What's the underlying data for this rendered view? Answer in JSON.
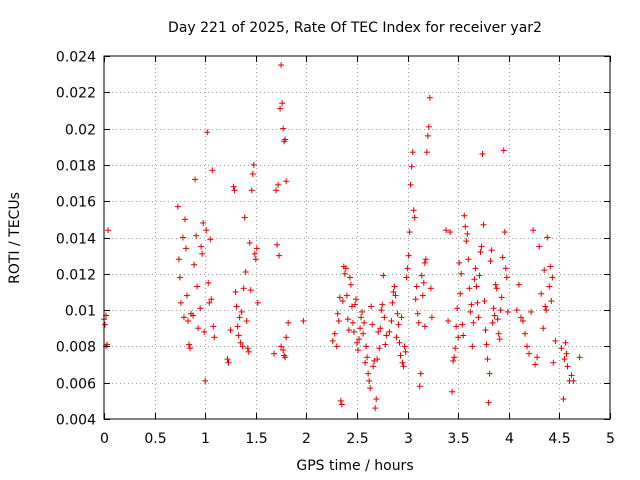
{
  "chart_data": {
    "type": "scatter",
    "title": "Day 221 of 2025, Rate Of TEC Index for receiver yar2",
    "xlabel": "GPS time / hours",
    "ylabel": "ROTI / TECUs",
    "xlim": [
      0,
      5
    ],
    "ylim": [
      0.004,
      0.024
    ],
    "xticks": [
      0,
      0.5,
      1,
      1.5,
      2,
      2.5,
      3,
      3.5,
      4,
      4.5,
      5
    ],
    "xtick_labels": [
      "0",
      "0.5",
      "1",
      "1.5",
      "2",
      "2.5",
      "3",
      "3.5",
      "4",
      "4.5",
      "5"
    ],
    "yticks": [
      0.004,
      0.006,
      0.008,
      0.01,
      0.012,
      0.014,
      0.016,
      0.018,
      0.02,
      0.022,
      0.024
    ],
    "ytick_labels": [
      "0.004",
      "0.006",
      "0.008",
      "0.01",
      "0.012",
      "0.014",
      "0.016",
      "0.018",
      "0.02",
      "0.022",
      "0.024"
    ],
    "grid": true,
    "marker": "+",
    "color": "#e00000",
    "series": [
      {
        "name": "ROTI",
        "points": [
          [
            0.0,
            0.0095
          ],
          [
            0.01,
            0.0092
          ],
          [
            0.02,
            0.008
          ],
          [
            0.03,
            0.0081
          ],
          [
            0.04,
            0.0144
          ],
          [
            0.02,
            0.0097
          ],
          [
            0.73,
            0.0157
          ],
          [
            0.74,
            0.0128
          ],
          [
            0.75,
            0.0118
          ],
          [
            0.76,
            0.0104
          ],
          [
            0.78,
            0.014
          ],
          [
            0.79,
            0.0096
          ],
          [
            0.8,
            0.015
          ],
          [
            0.81,
            0.0134
          ],
          [
            0.82,
            0.0108
          ],
          [
            0.83,
            0.0094
          ],
          [
            0.84,
            0.0081
          ],
          [
            0.85,
            0.0079
          ],
          [
            0.86,
            0.0098
          ],
          [
            0.88,
            0.0097
          ],
          [
            0.89,
            0.0125
          ],
          [
            0.9,
            0.0172
          ],
          [
            0.91,
            0.0141
          ],
          [
            0.92,
            0.0113
          ],
          [
            0.93,
            0.009
          ],
          [
            0.95,
            0.0101
          ],
          [
            0.96,
            0.0135
          ],
          [
            0.97,
            0.0131
          ],
          [
            0.98,
            0.0148
          ],
          [
            0.99,
            0.0088
          ],
          [
            1.0,
            0.0061
          ],
          [
            1.01,
            0.0144
          ],
          [
            1.02,
            0.0198
          ],
          [
            1.03,
            0.0115
          ],
          [
            1.04,
            0.0104
          ],
          [
            1.05,
            0.0139
          ],
          [
            1.06,
            0.0106
          ],
          [
            1.07,
            0.0177
          ],
          [
            1.08,
            0.0091
          ],
          [
            1.09,
            0.0085
          ],
          [
            1.22,
            0.0073
          ],
          [
            1.23,
            0.0071
          ],
          [
            1.25,
            0.0089
          ],
          [
            1.28,
            0.0168
          ],
          [
            1.29,
            0.0166
          ],
          [
            1.3,
            0.011
          ],
          [
            1.31,
            0.0102
          ],
          [
            1.32,
            0.0091
          ],
          [
            1.33,
            0.0086
          ],
          [
            1.34,
            0.0096
          ],
          [
            1.35,
            0.0082
          ],
          [
            1.36,
            0.0099
          ],
          [
            1.37,
            0.008
          ],
          [
            1.38,
            0.0112
          ],
          [
            1.39,
            0.0151
          ],
          [
            1.4,
            0.0121
          ],
          [
            1.41,
            0.0094
          ],
          [
            1.42,
            0.0079
          ],
          [
            1.43,
            0.0077
          ],
          [
            1.44,
            0.0137
          ],
          [
            1.45,
            0.0111
          ],
          [
            1.46,
            0.0166
          ],
          [
            1.47,
            0.0175
          ],
          [
            1.48,
            0.018
          ],
          [
            1.49,
            0.0131
          ],
          [
            1.5,
            0.0128
          ],
          [
            1.51,
            0.0134
          ],
          [
            1.52,
            0.0104
          ],
          [
            1.68,
            0.0076
          ],
          [
            1.7,
            0.0166
          ],
          [
            1.71,
            0.0136
          ],
          [
            1.72,
            0.0169
          ],
          [
            1.73,
            0.013
          ],
          [
            1.74,
            0.0211
          ],
          [
            1.75,
            0.0235
          ],
          [
            1.76,
            0.0214
          ],
          [
            1.77,
            0.02
          ],
          [
            1.78,
            0.0193
          ],
          [
            1.79,
            0.0194
          ],
          [
            1.75,
            0.008
          ],
          [
            1.77,
            0.0078
          ],
          [
            1.78,
            0.0075
          ],
          [
            1.79,
            0.0074
          ],
          [
            1.8,
            0.0171
          ],
          [
            1.82,
            0.0093
          ],
          [
            1.8,
            0.0085
          ],
          [
            1.97,
            0.0094
          ],
          [
            2.26,
            0.0083
          ],
          [
            2.28,
            0.0087
          ],
          [
            2.3,
            0.008
          ],
          [
            2.31,
            0.0098
          ],
          [
            2.32,
            0.0094
          ],
          [
            2.33,
            0.0107
          ],
          [
            2.34,
            0.005
          ],
          [
            2.35,
            0.0048
          ],
          [
            2.36,
            0.0105
          ],
          [
            2.37,
            0.0124
          ],
          [
            2.38,
            0.012
          ],
          [
            2.39,
            0.0123
          ],
          [
            2.4,
            0.0108
          ],
          [
            2.41,
            0.0095
          ],
          [
            2.42,
            0.0089
          ],
          [
            2.43,
            0.0118
          ],
          [
            2.44,
            0.0114
          ],
          [
            2.45,
            0.0102
          ],
          [
            2.46,
            0.0093
          ],
          [
            2.47,
            0.0088
          ],
          [
            2.48,
            0.0103
          ],
          [
            2.49,
            0.0106
          ],
          [
            2.5,
            0.0082
          ],
          [
            2.51,
            0.0078
          ],
          [
            2.52,
            0.0084
          ],
          [
            2.53,
            0.009
          ],
          [
            2.54,
            0.0096
          ],
          [
            2.55,
            0.0099
          ],
          [
            2.56,
            0.0087
          ],
          [
            2.57,
            0.0093
          ],
          [
            2.58,
            0.0071
          ],
          [
            2.59,
            0.008
          ],
          [
            2.6,
            0.0074
          ],
          [
            2.61,
            0.0065
          ],
          [
            2.62,
            0.0061
          ],
          [
            2.63,
            0.0057
          ],
          [
            2.64,
            0.0102
          ],
          [
            2.65,
            0.0092
          ],
          [
            2.66,
            0.0069
          ],
          [
            2.67,
            0.0072
          ],
          [
            2.68,
            0.0046
          ],
          [
            2.69,
            0.0051
          ],
          [
            2.7,
            0.0073
          ],
          [
            2.71,
            0.0088
          ],
          [
            2.72,
            0.0079
          ],
          [
            2.73,
            0.009
          ],
          [
            2.74,
            0.01
          ],
          [
            2.75,
            0.0103
          ],
          [
            2.76,
            0.0119
          ],
          [
            2.77,
            0.0096
          ],
          [
            2.78,
            0.0081
          ],
          [
            2.79,
            0.0086
          ],
          [
            2.82,
            0.0088
          ],
          [
            2.84,
            0.0094
          ],
          [
            2.85,
            0.0104
          ],
          [
            2.86,
            0.011
          ],
          [
            2.87,
            0.0113
          ],
          [
            2.88,
            0.0108
          ],
          [
            2.89,
            0.0085
          ],
          [
            2.9,
            0.0098
          ],
          [
            2.91,
            0.0092
          ],
          [
            2.92,
            0.0082
          ],
          [
            2.93,
            0.0075
          ],
          [
            2.94,
            0.0096
          ],
          [
            2.95,
            0.0071
          ],
          [
            2.96,
            0.0069
          ],
          [
            2.97,
            0.008
          ],
          [
            2.98,
            0.0077
          ],
          [
            2.99,
            0.0118
          ],
          [
            3.0,
            0.0123
          ],
          [
            3.01,
            0.013
          ],
          [
            3.02,
            0.0143
          ],
          [
            3.03,
            0.0169
          ],
          [
            3.04,
            0.0179
          ],
          [
            3.05,
            0.0187
          ],
          [
            3.06,
            0.0155
          ],
          [
            3.07,
            0.0151
          ],
          [
            3.08,
            0.0106
          ],
          [
            3.09,
            0.0113
          ],
          [
            3.1,
            0.0098
          ],
          [
            3.11,
            0.0093
          ],
          [
            3.12,
            0.0058
          ],
          [
            3.13,
            0.0065
          ],
          [
            3.14,
            0.0119
          ],
          [
            3.15,
            0.0108
          ],
          [
            3.16,
            0.0115
          ],
          [
            3.17,
            0.0126
          ],
          [
            3.18,
            0.0128
          ],
          [
            3.19,
            0.0187
          ],
          [
            3.2,
            0.0196
          ],
          [
            3.21,
            0.0201
          ],
          [
            3.22,
            0.0217
          ],
          [
            3.23,
            0.0112
          ],
          [
            3.24,
            0.0096
          ],
          [
            3.17,
            0.0091
          ],
          [
            3.38,
            0.0144
          ],
          [
            3.4,
            0.0094
          ],
          [
            3.42,
            0.0143
          ],
          [
            3.44,
            0.0055
          ],
          [
            3.45,
            0.0072
          ],
          [
            3.46,
            0.0074
          ],
          [
            3.47,
            0.0079
          ],
          [
            3.48,
            0.0091
          ],
          [
            3.49,
            0.0101
          ],
          [
            3.5,
            0.0085
          ],
          [
            3.51,
            0.0126
          ],
          [
            3.52,
            0.0109
          ],
          [
            3.53,
            0.012
          ],
          [
            3.54,
            0.0092
          ],
          [
            3.55,
            0.0086
          ],
          [
            3.56,
            0.0152
          ],
          [
            3.57,
            0.0146
          ],
          [
            3.58,
            0.0138
          ],
          [
            3.59,
            0.0142
          ],
          [
            3.6,
            0.0128
          ],
          [
            3.61,
            0.0112
          ],
          [
            3.62,
            0.0099
          ],
          [
            3.63,
            0.0103
          ],
          [
            3.64,
            0.008
          ],
          [
            3.65,
            0.0093
          ],
          [
            3.66,
            0.0117
          ],
          [
            3.67,
            0.0123
          ],
          [
            3.68,
            0.0113
          ],
          [
            3.69,
            0.0104
          ],
          [
            3.7,
            0.0096
          ],
          [
            3.71,
            0.0119
          ],
          [
            3.72,
            0.0132
          ],
          [
            3.73,
            0.0135
          ],
          [
            3.74,
            0.0186
          ],
          [
            3.75,
            0.0147
          ],
          [
            3.76,
            0.0105
          ],
          [
            3.77,
            0.0089
          ],
          [
            3.78,
            0.0081
          ],
          [
            3.79,
            0.0073
          ],
          [
            3.8,
            0.0049
          ],
          [
            3.81,
            0.0065
          ],
          [
            3.82,
            0.0127
          ],
          [
            3.83,
            0.0133
          ],
          [
            3.84,
            0.0093
          ],
          [
            3.85,
            0.0101
          ],
          [
            3.86,
            0.0097
          ],
          [
            3.87,
            0.0114
          ],
          [
            3.88,
            0.0112
          ],
          [
            3.89,
            0.0095
          ],
          [
            3.9,
            0.0087
          ],
          [
            3.91,
            0.0084
          ],
          [
            3.92,
            0.01
          ],
          [
            3.93,
            0.0107
          ],
          [
            3.94,
            0.0129
          ],
          [
            3.95,
            0.0188
          ],
          [
            3.96,
            0.0143
          ],
          [
            3.97,
            0.0123
          ],
          [
            3.98,
            0.0118
          ],
          [
            3.99,
            0.0099
          ],
          [
            4.08,
            0.01
          ],
          [
            4.1,
            0.0114
          ],
          [
            4.12,
            0.0096
          ],
          [
            4.14,
            0.0094
          ],
          [
            4.16,
            0.0087
          ],
          [
            4.18,
            0.008
          ],
          [
            4.2,
            0.0076
          ],
          [
            4.22,
            0.0099
          ],
          [
            4.24,
            0.0144
          ],
          [
            4.26,
            0.007
          ],
          [
            4.28,
            0.0074
          ],
          [
            4.3,
            0.0135
          ],
          [
            4.32,
            0.0109
          ],
          [
            4.34,
            0.009
          ],
          [
            4.35,
            0.0122
          ],
          [
            4.36,
            0.0102
          ],
          [
            4.37,
            0.01
          ],
          [
            4.38,
            0.014
          ],
          [
            4.4,
            0.0113
          ],
          [
            4.41,
            0.0124
          ],
          [
            4.42,
            0.0105
          ],
          [
            4.43,
            0.0118
          ],
          [
            4.44,
            0.0071
          ],
          [
            4.46,
            0.0083
          ],
          [
            4.52,
            0.0079
          ],
          [
            4.54,
            0.0051
          ],
          [
            4.55,
            0.0073
          ],
          [
            4.56,
            0.0082
          ],
          [
            4.57,
            0.0076
          ],
          [
            4.58,
            0.0069
          ],
          [
            4.6,
            0.0061
          ],
          [
            4.62,
            0.0064
          ],
          [
            4.64,
            0.0061
          ],
          [
            4.7,
            0.0074
          ]
        ]
      }
    ]
  }
}
